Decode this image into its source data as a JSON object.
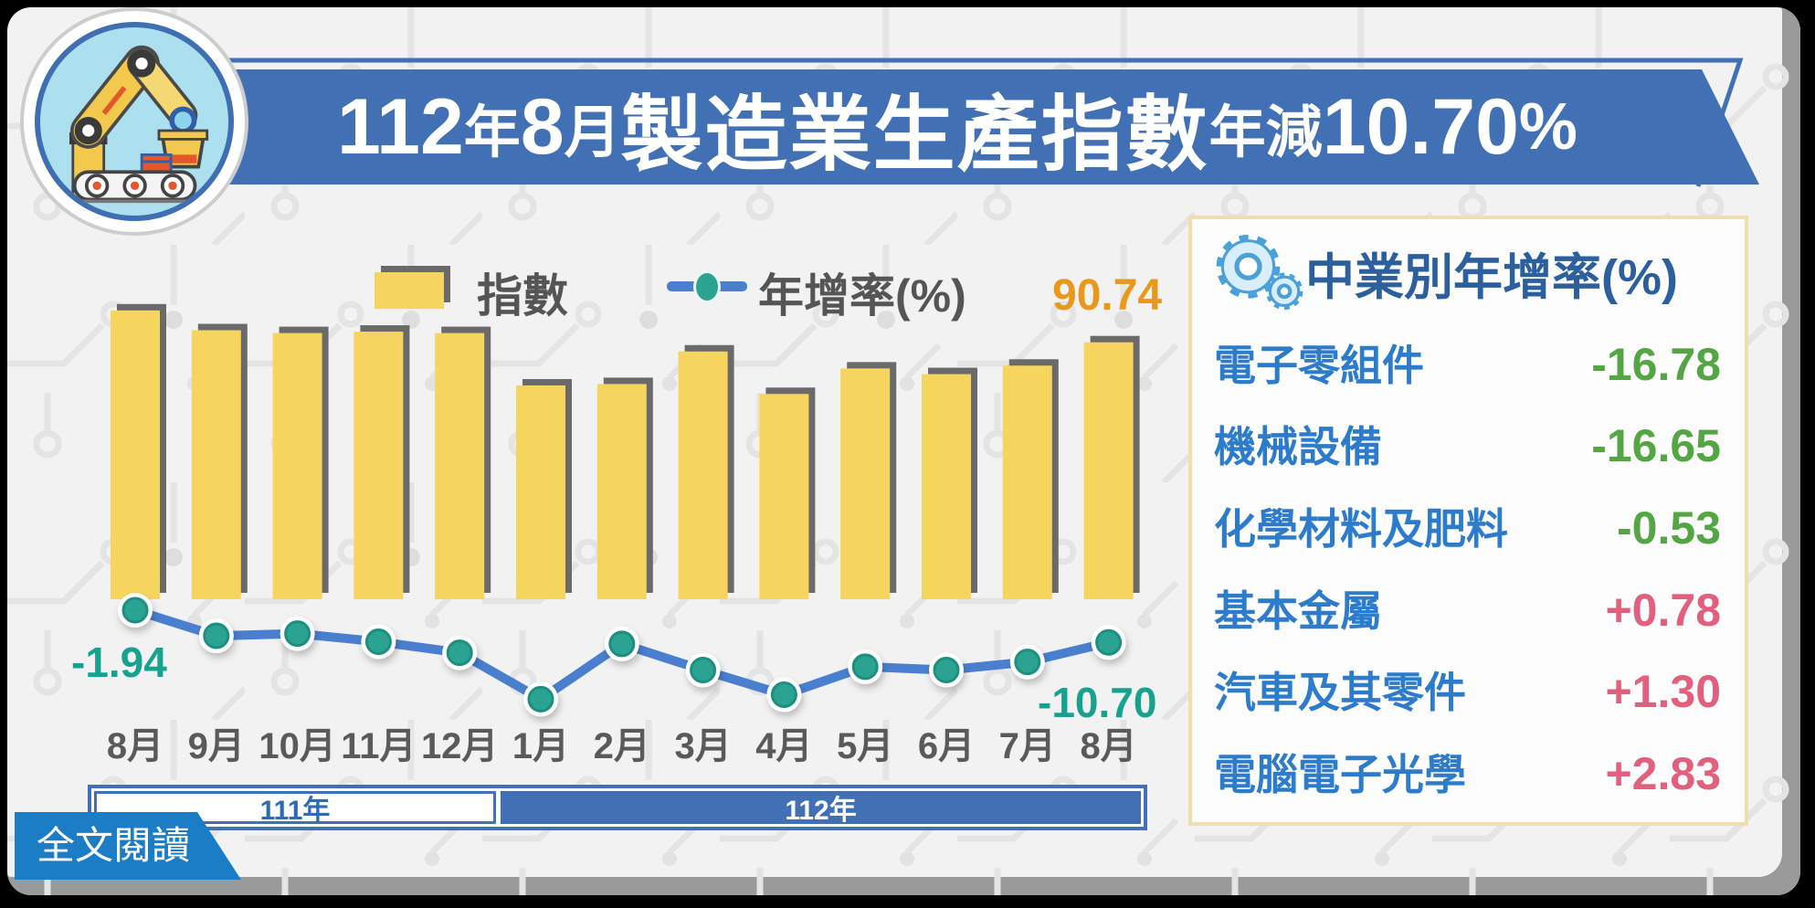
{
  "header": {
    "title_parts": {
      "year": "112",
      "year_suffix": "年",
      "month": "8",
      "month_suffix": "月",
      "subject": "製造業生產指數",
      "change_label": "年減",
      "change_value": "10.70",
      "percent": "%"
    }
  },
  "legend": {
    "bar_label": "指數",
    "line_label": "年增率(%)"
  },
  "chart_data": {
    "type": "bar",
    "title": "112年8月製造業生產指數年減10.70%",
    "xlabel": "",
    "ylabel": "",
    "categories": [
      "8月",
      "9月",
      "10月",
      "11月",
      "12月",
      "1月",
      "2月",
      "3月",
      "4月",
      "5月",
      "6月",
      "7月",
      "8月"
    ],
    "x_axis_groups": [
      {
        "label": "111年",
        "span": 5
      },
      {
        "label": "112年",
        "span": 8
      }
    ],
    "series": [
      {
        "name": "指數",
        "type": "bar",
        "values": [
          102,
          95,
          94,
          94.5,
          94,
          75.5,
          76,
          87.5,
          72.5,
          81.5,
          79.5,
          82.5,
          90.74
        ]
      },
      {
        "name": "年增率(%)",
        "type": "line",
        "values": [
          -1.94,
          -8.9,
          -8.3,
          -10.5,
          -13.5,
          -26.1,
          -11.1,
          -18.2,
          -24.9,
          -17.3,
          -18.2,
          -16.0,
          -10.7
        ]
      }
    ],
    "ylim_bar": [
      0,
      110
    ],
    "grid": false,
    "legend_position": "top",
    "annotations": {
      "first_yoy": "-1.94",
      "peak_index": "90.74",
      "last_yoy": "-10.70"
    }
  },
  "panel": {
    "title": "中業別年增率(%)",
    "items": [
      {
        "name": "電子零組件",
        "value": "-16.78",
        "color": "#53a643"
      },
      {
        "name": "機械設備",
        "value": "-16.65",
        "color": "#53a643"
      },
      {
        "name": "化學材料及肥料",
        "value": "-0.53",
        "color": "#53a643"
      },
      {
        "name": "基本金屬",
        "value": "+0.78",
        "color": "#e2607e"
      },
      {
        "name": "汽車及其零件",
        "value": "+1.30",
        "color": "#e2607e"
      },
      {
        "name": "電腦電子光學",
        "value": "+2.83",
        "color": "#e2607e"
      }
    ]
  },
  "footer": {
    "read_more": "全文閱讀"
  },
  "colors": {
    "banner_blue": "#4170b4",
    "button_blue": "#1a7dc5",
    "bar_yellow": "#f6d55f",
    "bar_shadow_gray": "#6a6a6a",
    "line_blue": "#4a7fd0",
    "dot_teal": "#2aa392",
    "yoy_label_teal": "#17a28f",
    "index_label_orange": "#e8991c",
    "panel_border_cream": "#f0dfae",
    "positive_pink": "#e2607e",
    "negative_green": "#53a643"
  }
}
